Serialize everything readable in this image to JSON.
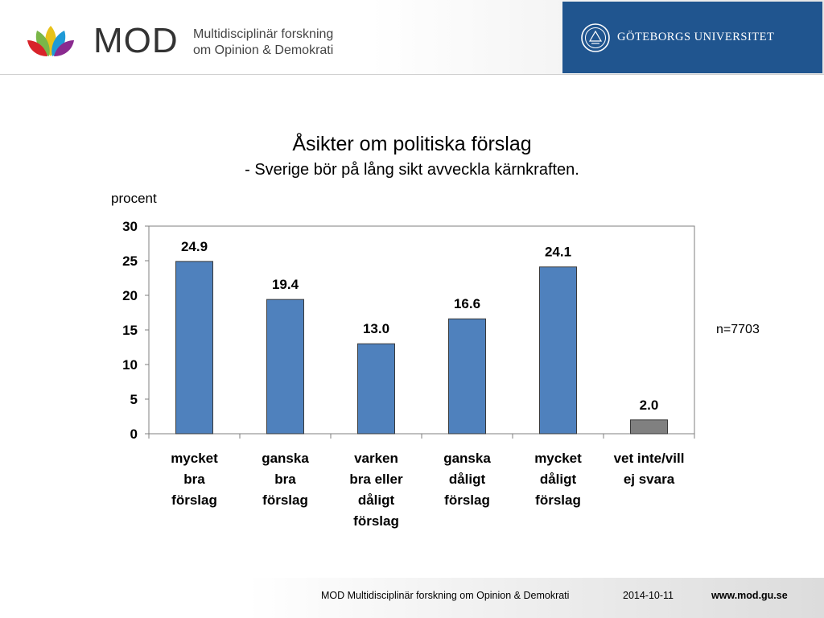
{
  "header": {
    "brand": "MOD",
    "brand_subtitle_line1": "Multidisciplinär forskning",
    "brand_subtitle_line2": "om Opinion & Demokrati",
    "university": "GÖTEBORGS UNIVERSITET"
  },
  "chart_data": {
    "type": "bar",
    "title": "Åsikter om politiska förslag",
    "subtitle": "- Sverige bör på lång sikt avveckla kärnkraften.",
    "ylabel": "procent",
    "xlabel": "",
    "ylim": [
      0,
      30
    ],
    "yticks": [
      "0",
      "5",
      "10",
      "15",
      "20",
      "25",
      "30"
    ],
    "categories": [
      [
        "mycket",
        "bra",
        "förslag"
      ],
      [
        "ganska",
        "bra",
        "förslag"
      ],
      [
        "varken",
        "bra eller",
        "dåligt",
        "förslag"
      ],
      [
        "ganska",
        "dåligt",
        "förslag"
      ],
      [
        "mycket",
        "dåligt",
        "förslag"
      ],
      [
        "vet inte/vill",
        "ej svara"
      ]
    ],
    "values": [
      24.9,
      19.4,
      13.0,
      16.6,
      24.1,
      2.0
    ],
    "value_labels": [
      "24.9",
      "19.4",
      "13.0",
      "16.6",
      "24.1",
      "2.0"
    ],
    "bar_colors": [
      "#4f81bd",
      "#4f81bd",
      "#4f81bd",
      "#4f81bd",
      "#4f81bd",
      "#808080"
    ],
    "grid": false,
    "note": "n=7703"
  },
  "footer": {
    "org": "MOD Multidisciplinär forskning om Opinion & Demokrati",
    "date": "2014-10-11",
    "url": "www.mod.gu.se"
  }
}
